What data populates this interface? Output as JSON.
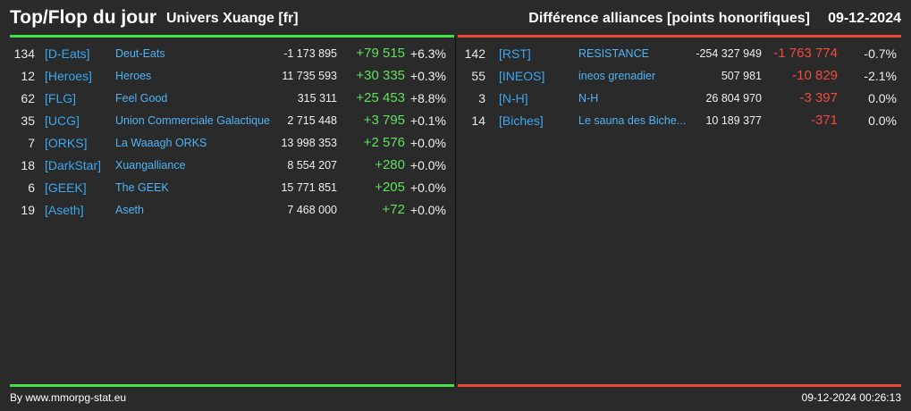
{
  "header": {
    "title": "Top/Flop du jour",
    "subtitle": "Univers Xuange [fr]",
    "right_title": "Différence alliances [points honorifiques]",
    "date": "09-12-2024"
  },
  "top": [
    {
      "rank": "134",
      "tag": "[D-Eats]",
      "name": "Deut-Eats",
      "points": "-1 173 895",
      "diff": "+79 515",
      "pct": "+6.3%"
    },
    {
      "rank": "12",
      "tag": "[Heroes]",
      "name": "Heroes",
      "points": "11 735 593",
      "diff": "+30 335",
      "pct": "+0.3%"
    },
    {
      "rank": "62",
      "tag": "[FLG]",
      "name": "Feel Good",
      "points": "315 311",
      "diff": "+25 453",
      "pct": "+8.8%"
    },
    {
      "rank": "35",
      "tag": "[UCG]",
      "name": "Union Commerciale Galactique",
      "points": "2 715 448",
      "diff": "+3 795",
      "pct": "+0.1%"
    },
    {
      "rank": "7",
      "tag": "[ORKS]",
      "name": "La Waaagh ORKS",
      "points": "13 998 353",
      "diff": "+2 576",
      "pct": "+0.0%"
    },
    {
      "rank": "18",
      "tag": "[DarkStar]",
      "name": "Xuangalliance",
      "points": "8 554 207",
      "diff": "+280",
      "pct": "+0.0%"
    },
    {
      "rank": "6",
      "tag": "[GEEK]",
      "name": "The GEEK",
      "points": "15 771 851",
      "diff": "+205",
      "pct": "+0.0%"
    },
    {
      "rank": "19",
      "tag": "[Aseth]",
      "name": "Aseth",
      "points": "7 468 000",
      "diff": "+72",
      "pct": "+0.0%"
    }
  ],
  "flop": [
    {
      "rank": "142",
      "tag": "[RST]",
      "name": "RESISTANCE",
      "points": "-254 327 949",
      "diff": "-1 763 774",
      "pct": "-0.7%"
    },
    {
      "rank": "55",
      "tag": "[INEOS]",
      "name": "ineos grenadier",
      "points": "507 981",
      "diff": "-10 829",
      "pct": "-2.1%"
    },
    {
      "rank": "3",
      "tag": "[N-H]",
      "name": "N-H",
      "points": "26 804 970",
      "diff": "-3 397",
      "pct": "0.0%"
    },
    {
      "rank": "14",
      "tag": "[Biches]",
      "name": "Le sauna des Biche...",
      "points": "10 189 377",
      "diff": "-371",
      "pct": "0.0%"
    }
  ],
  "footer": {
    "left": "By www.mmorpg-stat.eu",
    "right": "09-12-2024 00:26:13"
  },
  "colors": {
    "positive": "#5ee05e",
    "negative": "#ee4a3e",
    "link": "#3aa8f0",
    "background": "#2a2a2a"
  }
}
